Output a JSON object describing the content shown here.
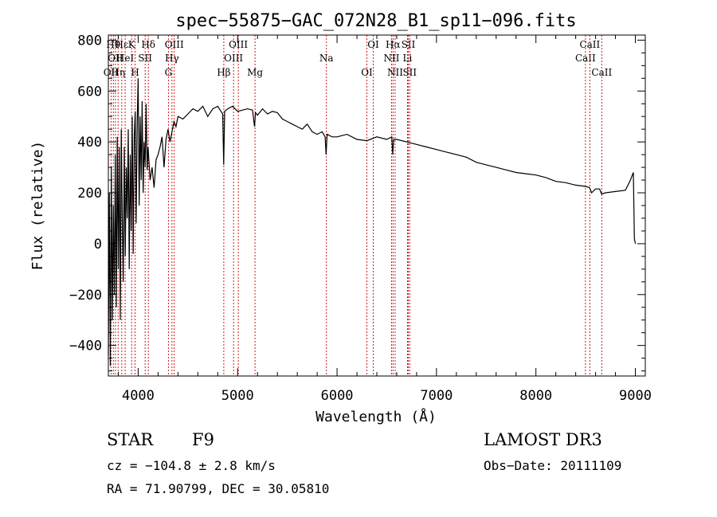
{
  "chart_data": {
    "type": "line",
    "title": "spec−55875−GAC_072N28_B1_sp11−096.fits",
    "xlabel": "Wavelength (Å)",
    "ylabel": "Flux (relative)",
    "xlim": [
      3700,
      9100
    ],
    "ylim": [
      -520,
      820
    ],
    "xticks": [
      4000,
      5000,
      6000,
      7000,
      8000,
      9000
    ],
    "xtick_labels": [
      "4000",
      "5000",
      "6000",
      "7000",
      "8000",
      "9000"
    ],
    "yticks": [
      -400,
      -200,
      0,
      200,
      400,
      600,
      800
    ],
    "ytick_labels": [
      "−400",
      "−200",
      "0",
      "200",
      "400",
      "600",
      "800"
    ],
    "grid": false,
    "series": [
      {
        "name": "flux",
        "color": "#000000",
        "x": [
          3700,
          3710,
          3720,
          3730,
          3740,
          3750,
          3760,
          3770,
          3780,
          3790,
          3800,
          3810,
          3820,
          3830,
          3840,
          3850,
          3860,
          3870,
          3880,
          3890,
          3900,
          3910,
          3920,
          3930,
          3940,
          3950,
          3960,
          3970,
          3980,
          3990,
          4000,
          4010,
          4020,
          4030,
          4040,
          4050,
          4060,
          4070,
          4080,
          4090,
          4100,
          4120,
          4140,
          4160,
          4180,
          4200,
          4220,
          4240,
          4260,
          4280,
          4300,
          4320,
          4340,
          4360,
          4380,
          4400,
          4450,
          4500,
          4550,
          4600,
          4650,
          4700,
          4750,
          4800,
          4850,
          4860,
          4870,
          4900,
          4950,
          5000,
          5050,
          5100,
          5150,
          5170,
          5180,
          5200,
          5250,
          5300,
          5350,
          5400,
          5450,
          5500,
          5550,
          5600,
          5650,
          5700,
          5750,
          5800,
          5850,
          5880,
          5890,
          5900,
          5950,
          6000,
          6100,
          6200,
          6300,
          6400,
          6500,
          6550,
          6560,
          6570,
          6600,
          6700,
          6800,
          6900,
          7000,
          7100,
          7200,
          7300,
          7400,
          7500,
          7600,
          7700,
          7800,
          7900,
          8000,
          8100,
          8200,
          8300,
          8400,
          8500,
          8540,
          8560,
          8600,
          8640,
          8660,
          8700,
          8800,
          8900,
          8950,
          8980,
          8990,
          9000
        ],
        "values": [
          -440,
          200,
          -480,
          300,
          -300,
          150,
          -200,
          350,
          -250,
          420,
          -100,
          380,
          -300,
          450,
          100,
          -150,
          380,
          -50,
          300,
          100,
          450,
          -100,
          350,
          50,
          500,
          -40,
          420,
          520,
          80,
          480,
          650,
          150,
          500,
          250,
          560,
          200,
          400,
          300,
          550,
          290,
          380,
          250,
          300,
          220,
          330,
          350,
          380,
          420,
          300,
          410,
          450,
          400,
          440,
          480,
          460,
          500,
          490,
          510,
          530,
          520,
          540,
          500,
          530,
          540,
          510,
          310,
          520,
          530,
          540,
          520,
          525,
          530,
          525,
          460,
          515,
          505,
          530,
          510,
          520,
          515,
          490,
          480,
          470,
          460,
          450,
          470,
          440,
          430,
          440,
          420,
          350,
          430,
          420,
          420,
          430,
          410,
          405,
          420,
          410,
          420,
          350,
          410,
          410,
          400,
          390,
          380,
          370,
          360,
          350,
          340,
          320,
          310,
          300,
          290,
          280,
          275,
          270,
          260,
          245,
          240,
          230,
          225,
          220,
          200,
          215,
          215,
          195,
          200,
          205,
          210,
          250,
          280,
          20,
          0
        ]
      }
    ],
    "line_markers": [
      {
        "x": 3727,
        "label": "OII",
        "row": 3
      },
      {
        "x": 3750,
        "label": "Hθ",
        "row": 1
      },
      {
        "x": 3771,
        "label": "OII",
        "row": 2
      },
      {
        "x": 3798,
        "label": "Hη",
        "row": 3
      },
      {
        "x": 3835,
        "label": "Hε",
        "row": 1
      },
      {
        "x": 3869,
        "label": "HeI",
        "row": 2
      },
      {
        "x": 3934,
        "label": "K",
        "row": 1
      },
      {
        "x": 3969,
        "label": "H",
        "row": 3
      },
      {
        "x": 4070,
        "label": "SII",
        "row": 2
      },
      {
        "x": 4102,
        "label": "Hδ",
        "row": 1
      },
      {
        "x": 4304,
        "label": "G",
        "row": 3
      },
      {
        "x": 4340,
        "label": "Hγ",
        "row": 2
      },
      {
        "x": 4363,
        "label": "OIII",
        "row": 1
      },
      {
        "x": 4861,
        "label": "Hβ",
        "row": 3
      },
      {
        "x": 4959,
        "label": "OIII",
        "row": 2
      },
      {
        "x": 5007,
        "label": "OIII",
        "row": 1
      },
      {
        "x": 5175,
        "label": "Mg",
        "row": 3
      },
      {
        "x": 5893,
        "label": "Na",
        "row": 2
      },
      {
        "x": 6300,
        "label": "OI",
        "row": 3
      },
      {
        "x": 6364,
        "label": "OI",
        "row": 1
      },
      {
        "x": 6548,
        "label": "NII",
        "row": 2
      },
      {
        "x": 6563,
        "label": "Hα",
        "row": 1
      },
      {
        "x": 6584,
        "label": "NII",
        "row": 3
      },
      {
        "x": 6708,
        "label": "Li",
        "row": 2
      },
      {
        "x": 6717,
        "label": "SII",
        "row": 1
      },
      {
        "x": 6731,
        "label": "SII",
        "row": 3
      },
      {
        "x": 8498,
        "label": "CaII",
        "row": 2
      },
      {
        "x": 8542,
        "label": "CaII",
        "row": 1
      },
      {
        "x": 8662,
        "label": "CaII",
        "row": 3
      }
    ],
    "marker_color": "#cc0000"
  },
  "info": {
    "object_class": "STAR",
    "subclass": "F9",
    "survey": "LAMOST DR3",
    "redshift": "cz = −104.8 ± 2.8 km/s",
    "obs_date": "Obs−Date: 20111109",
    "coords": "RA =  71.90799, DEC =  30.05810"
  }
}
